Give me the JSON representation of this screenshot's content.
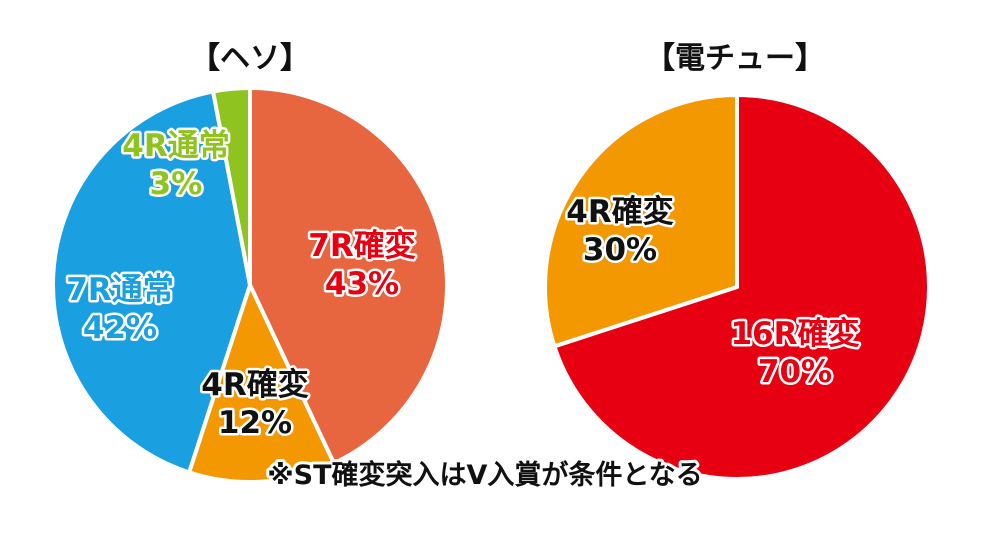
{
  "chart_data": [
    {
      "type": "pie",
      "title": "【ヘソ】",
      "slices": [
        {
          "label": "7R確変",
          "value": 43,
          "value_text": "43%",
          "color": "#e8663f",
          "label_color": "#e60012"
        },
        {
          "label": "4R確変",
          "value": 12,
          "value_text": "12%",
          "color": "#f39800",
          "label_color": "#111111"
        },
        {
          "label": "7R通常",
          "value": 42,
          "value_text": "42%",
          "color": "#1a9fe0",
          "label_color": "#1a9fe0"
        },
        {
          "label": "4R通常",
          "value": 3,
          "value_text": "3%",
          "color": "#8fc31f",
          "label_color": "#8fc31f"
        }
      ]
    },
    {
      "type": "pie",
      "title": "【電チュー】",
      "slices": [
        {
          "label": "16R確変",
          "value": 70,
          "value_text": "70%",
          "color": "#e60012",
          "label_color": "#e60012"
        },
        {
          "label": "4R確変",
          "value": 30,
          "value_text": "30%",
          "color": "#f39800",
          "label_color": "#111111"
        }
      ]
    }
  ],
  "footnote": "※ST確変突入はV入賞が条件となる",
  "colors": {
    "slice_border": "#ffffff",
    "text_outline": "#ffffff"
  }
}
